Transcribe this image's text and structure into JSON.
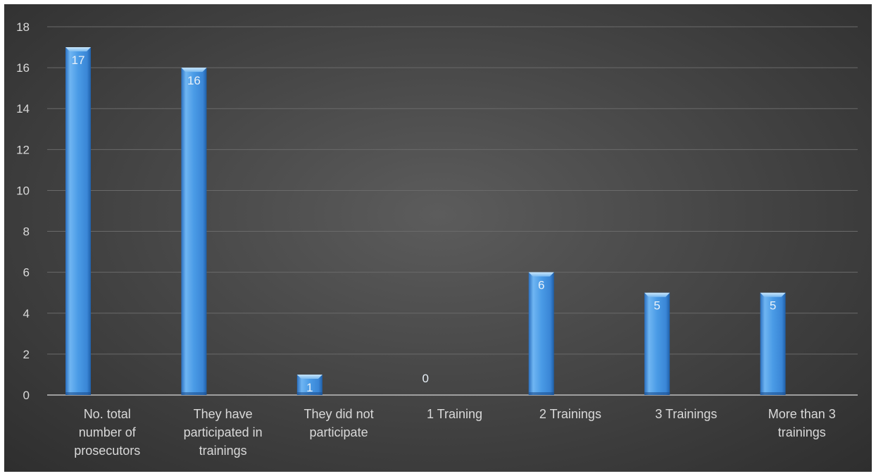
{
  "chart_data": {
    "type": "bar",
    "categories": [
      "No. total number of prosecutors",
      "They have participated in trainings",
      "They did not participate",
      "1 Training",
      "2 Trainings",
      "3 Trainings",
      "More than 3 trainings"
    ],
    "category_label_lines": [
      [
        "No. total",
        "number of",
        "prosecutors"
      ],
      [
        "They have",
        "participated in",
        "trainings"
      ],
      [
        "They did not",
        "participate"
      ],
      [
        "1 Training"
      ],
      [
        "2 Trainings"
      ],
      [
        "3 Trainings"
      ],
      [
        "More than 3",
        "trainings"
      ]
    ],
    "values": [
      17,
      16,
      1,
      0,
      6,
      5,
      5
    ],
    "data_labels": [
      "17",
      "16",
      "1",
      "0",
      "6",
      "5",
      "5"
    ],
    "yticks": [
      "0",
      "2",
      "4",
      "6",
      "8",
      "10",
      "12",
      "14",
      "16",
      "18"
    ],
    "ylim": [
      0,
      18
    ],
    "grid": true,
    "legend": "none",
    "title": "",
    "xlabel": "",
    "ylabel": "",
    "colors": {
      "bar_light": "#9fd0f7",
      "bar_mid": "#4a9be6",
      "bar_dark": "#1f5fa8",
      "background": "#474747",
      "text": "#d9d9d9"
    }
  }
}
